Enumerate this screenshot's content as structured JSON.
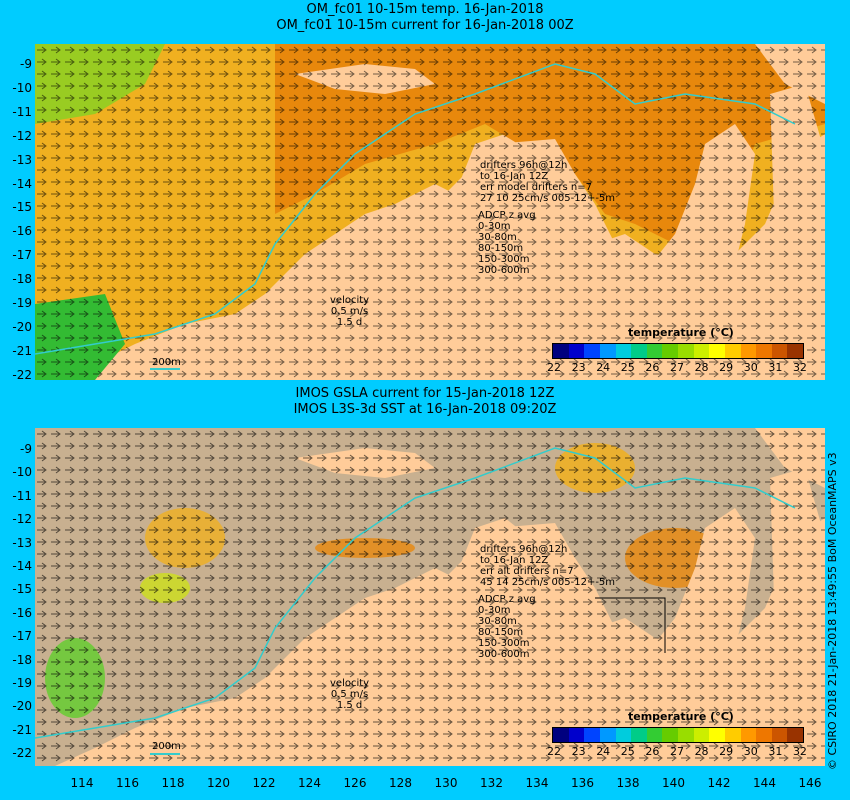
{
  "top": {
    "title_line1": "OM_fc01 10-15m temp. 16-Jan-2018",
    "title_line2": "OM_fc01 10-15m current for 16-Jan-2018 00Z",
    "drifters": [
      "drifters 96h@12h",
      "to 16-Jan 12Z",
      "err model drifters n=7",
      "27 10 25cm/s 005-12+-5m"
    ],
    "adcp_title": "ADCP z avg",
    "adcp": [
      "0-30m",
      "30-80m",
      "80-150m",
      "150-300m",
      "300-600m"
    ],
    "velocity": [
      "velocity",
      "0.5 m/s",
      "1.5 d"
    ],
    "isobath": "200m",
    "cbar_title": "temperature (°C)",
    "cbar_ticks": [
      "22",
      "23",
      "24",
      "25",
      "26",
      "27",
      "28",
      "29",
      "30",
      "31",
      "32"
    ]
  },
  "bottom": {
    "title_line1": "IMOS GSLA current for 15-Jan-2018 12Z",
    "title_line2": "IMOS L3S-3d SST at 16-Jan-2018 09:20Z",
    "drifters": [
      "drifters 96h@12h",
      "to 16-Jan 12Z",
      "err alt drifters n=7",
      "45 14 25cm/s 005-12+-5m"
    ],
    "adcp_title": "ADCP z avg",
    "adcp": [
      "0-30m",
      "30-80m",
      "80-150m",
      "150-300m",
      "300-600m"
    ],
    "velocity": [
      "velocity",
      "0.5 m/s",
      "1.5 d"
    ],
    "isobath": "200m",
    "cbar_title": "temperature (°C)",
    "cbar_ticks": [
      "22",
      "23",
      "24",
      "25",
      "26",
      "27",
      "28",
      "29",
      "30",
      "31",
      "32"
    ]
  },
  "lat_ticks": [
    "-9",
    "-10",
    "-11",
    "-12",
    "-13",
    "-14",
    "-15",
    "-16",
    "-17",
    "-18",
    "-19",
    "-20",
    "-21",
    "-22"
  ],
  "lon_ticks": [
    "114",
    "116",
    "118",
    "120",
    "122",
    "124",
    "126",
    "128",
    "130",
    "132",
    "134",
    "136",
    "138",
    "140",
    "142",
    "144",
    "146"
  ],
  "side_text": "© CSIRO 2018  21-Jan-2018 13:49:55 BoM OceanMAPS v3",
  "colors": {
    "background": "#00ccff",
    "land": "#ffcc99",
    "ocean_warm": "#e8880c",
    "ocean_mid": "#f0b020",
    "ocean_cool": "#40c040",
    "no_data": "#c8b090",
    "isobath": "#33cccc"
  },
  "colorbar": [
    "#00007f",
    "#0000cc",
    "#0044ff",
    "#0099ff",
    "#00ccdd",
    "#00cc88",
    "#33cc33",
    "#66cc00",
    "#99dd00",
    "#ccee00",
    "#ffff00",
    "#ffcc00",
    "#ff9900",
    "#ee7700",
    "#cc5500",
    "#993300"
  ]
}
